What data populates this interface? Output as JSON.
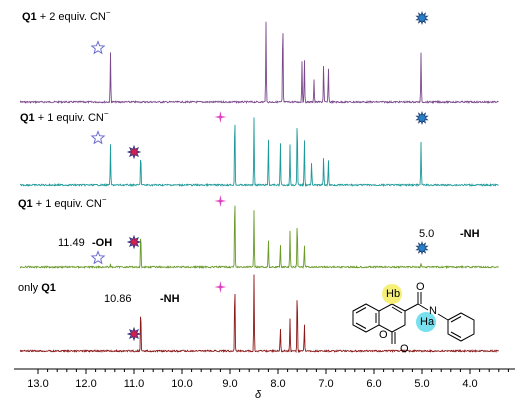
{
  "chart_data": {
    "type": "line",
    "title": "",
    "xlabel": "δ",
    "ylabel": "",
    "xlim": [
      13.5,
      3.4
    ],
    "x_ticks": [
      "13.0",
      "12.0",
      "11.0",
      "10.0",
      "9.0",
      "8.0",
      "7.0",
      "6.0",
      "5.0",
      "4.0"
    ],
    "x_tick_values": [
      13.0,
      12.0,
      11.0,
      10.0,
      9.0,
      8.0,
      7.0,
      6.0,
      5.0,
      4.0
    ],
    "grid": false,
    "series": [
      {
        "name_bold": "Q1",
        "name_rest": " + 2 equiv. CN",
        "name_sup": "−",
        "color": "#7b4a8c",
        "peaks": [
          {
            "x": 11.49,
            "h": 0.55
          },
          {
            "x": 8.25,
            "h": 0.9
          },
          {
            "x": 7.9,
            "h": 0.95
          },
          {
            "x": 7.5,
            "h": 0.45
          },
          {
            "x": 7.45,
            "h": 0.48
          },
          {
            "x": 7.25,
            "h": 0.25
          },
          {
            "x": 7.05,
            "h": 0.42
          },
          {
            "x": 6.95,
            "h": 0.4
          },
          {
            "x": 5.02,
            "h": 0.55
          }
        ],
        "markers": [
          {
            "symbol": "outline-star",
            "x": 11.75
          },
          {
            "symbol": "blue-burst",
            "x": 5.0
          }
        ]
      },
      {
        "name_bold": "Q1",
        "name_rest": " + 1 equiv. CN",
        "name_sup": "−",
        "color": "#1f9a9a",
        "peaks": [
          {
            "x": 11.49,
            "h": 0.5
          },
          {
            "x": 10.86,
            "h": 0.42
          },
          {
            "x": 8.9,
            "h": 0.95
          },
          {
            "x": 8.5,
            "h": 0.85
          },
          {
            "x": 8.2,
            "h": 0.6
          },
          {
            "x": 7.95,
            "h": 0.55
          },
          {
            "x": 7.75,
            "h": 0.5
          },
          {
            "x": 7.6,
            "h": 0.88
          },
          {
            "x": 7.45,
            "h": 0.6
          },
          {
            "x": 7.3,
            "h": 0.3
          },
          {
            "x": 7.05,
            "h": 0.35
          },
          {
            "x": 6.95,
            "h": 0.32
          },
          {
            "x": 5.02,
            "h": 0.55
          }
        ],
        "markers": [
          {
            "symbol": "outline-star",
            "x": 11.75
          },
          {
            "symbol": "red-burst",
            "x": 11.0
          },
          {
            "symbol": "pink-star",
            "x": 9.2
          },
          {
            "symbol": "blue-burst",
            "x": 5.0
          }
        ]
      },
      {
        "name_bold": "Q1",
        "name_rest": " + 1 equiv. CN",
        "name_sup": "−",
        "color": "#6a9a2a",
        "peaks": [
          {
            "x": 11.49,
            "h": 0.03
          },
          {
            "x": 10.86,
            "h": 0.45
          },
          {
            "x": 8.9,
            "h": 0.95
          },
          {
            "x": 8.5,
            "h": 0.7
          },
          {
            "x": 8.2,
            "h": 0.35
          },
          {
            "x": 7.95,
            "h": 0.3
          },
          {
            "x": 7.75,
            "h": 0.45
          },
          {
            "x": 7.6,
            "h": 0.6
          },
          {
            "x": 7.45,
            "h": 0.28
          },
          {
            "x": 5.02,
            "h": 0.04
          }
        ],
        "markers": [
          {
            "symbol": "outline-star",
            "x": 11.75
          },
          {
            "symbol": "red-burst",
            "x": 11.0
          },
          {
            "symbol": "pink-star",
            "x": 9.2
          },
          {
            "symbol": "blue-burst",
            "x": 5.0
          }
        ],
        "annotations": [
          {
            "value": "11.49",
            "tag": "-OH"
          },
          {
            "value": "5.0",
            "tag": "-NH"
          }
        ]
      },
      {
        "name_bold": "Q1",
        "name_prefix": "only ",
        "color": "#8b1a1a",
        "peaks": [
          {
            "x": 10.86,
            "h": 0.55
          },
          {
            "x": 8.9,
            "h": 0.9
          },
          {
            "x": 8.5,
            "h": 0.95
          },
          {
            "x": 7.95,
            "h": 0.3
          },
          {
            "x": 7.75,
            "h": 0.4
          },
          {
            "x": 7.6,
            "h": 0.8
          },
          {
            "x": 7.45,
            "h": 0.35
          }
        ],
        "markers": [
          {
            "symbol": "red-burst",
            "x": 11.0
          },
          {
            "symbol": "pink-star",
            "x": 9.2
          }
        ],
        "annotations": [
          {
            "value": "10.86",
            "tag": "-NH"
          }
        ]
      }
    ],
    "structure_labels": {
      "hb": "Hb",
      "ha": "Ha",
      "n": "N",
      "o_carbonyl": "O",
      "o_ring": "O",
      "o_exo": "O"
    }
  }
}
